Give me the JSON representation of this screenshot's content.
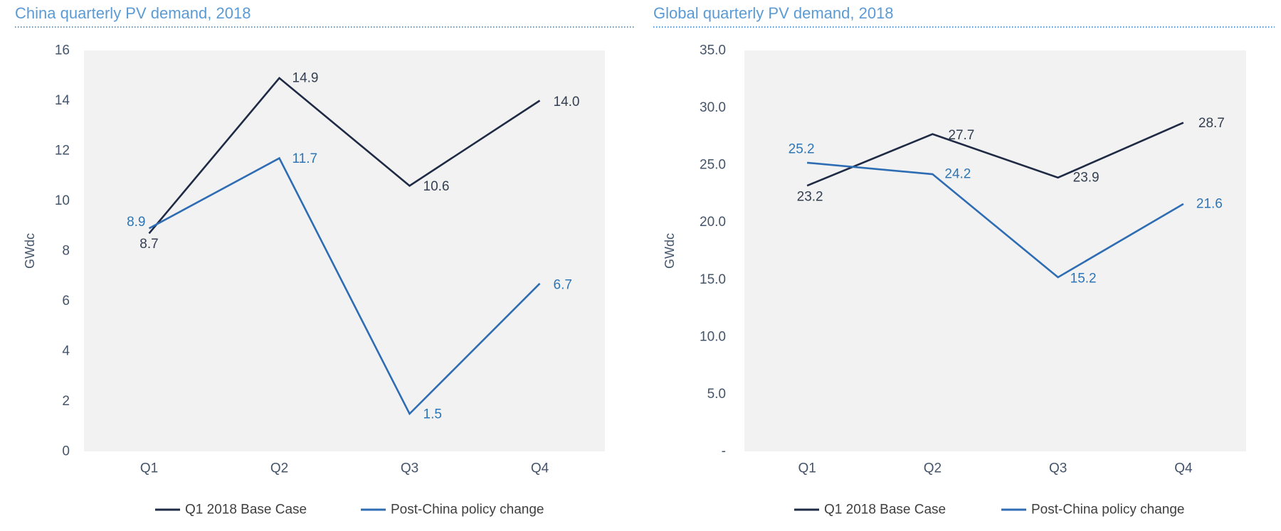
{
  "chart_data": [
    {
      "type": "line",
      "title": "China quarterly PV demand, 2018",
      "xlabel": "",
      "ylabel": "GWdc",
      "categories": [
        "Q1",
        "Q2",
        "Q3",
        "Q4"
      ],
      "ylim": [
        0,
        16
      ],
      "y_ticks": [
        0,
        2,
        4,
        6,
        8,
        10,
        12,
        14,
        16
      ],
      "y_tick_labels": [
        "0",
        "2",
        "4",
        "6",
        "8",
        "10",
        "12",
        "14",
        "16"
      ],
      "grid": false,
      "legend": "bottom",
      "series": [
        {
          "name": "Q1 2018 Base Case",
          "values": [
            8.7,
            14.9,
            10.6,
            14.0
          ],
          "data_labels": [
            "8.7",
            "14.9",
            "10.6",
            "14.0"
          ],
          "color": "#1f2a44",
          "label_color": "#333f50"
        },
        {
          "name": "Post-China policy change",
          "values": [
            8.9,
            11.7,
            1.5,
            6.7
          ],
          "data_labels": [
            "8.9",
            "11.7",
            "1.5",
            "6.7"
          ],
          "color": "#2e6db4",
          "label_color": "#2e75b6"
        }
      ]
    },
    {
      "type": "line",
      "title": "Global quarterly PV demand, 2018",
      "xlabel": "",
      "ylabel": "GWdc",
      "categories": [
        "Q1",
        "Q2",
        "Q3",
        "Q4"
      ],
      "ylim": [
        0,
        35
      ],
      "y_ticks": [
        0,
        5,
        10,
        15,
        20,
        25,
        30,
        35
      ],
      "y_tick_labels": [
        "-",
        "5.0",
        "10.0",
        "15.0",
        "20.0",
        "25.0",
        "30.0",
        "35.0"
      ],
      "grid": false,
      "legend": "bottom",
      "series": [
        {
          "name": "Q1 2018 Base Case",
          "values": [
            23.2,
            27.7,
            23.9,
            28.7
          ],
          "data_labels": [
            "23.2",
            "27.7",
            "23.9",
            "28.7"
          ],
          "color": "#1f2a44",
          "label_color": "#333f50"
        },
        {
          "name": "Post-China policy change",
          "values": [
            25.2,
            24.2,
            15.2,
            21.6
          ],
          "data_labels": [
            "25.2",
            "24.2",
            "15.2",
            "21.6"
          ],
          "color": "#2e6db4",
          "label_color": "#2e75b6"
        }
      ]
    }
  ],
  "colors": {
    "title": "#5b9bd5",
    "title_rule": "#5b9bd5",
    "axis_text": "#44546a",
    "plot_background": "#f2f2f2"
  }
}
